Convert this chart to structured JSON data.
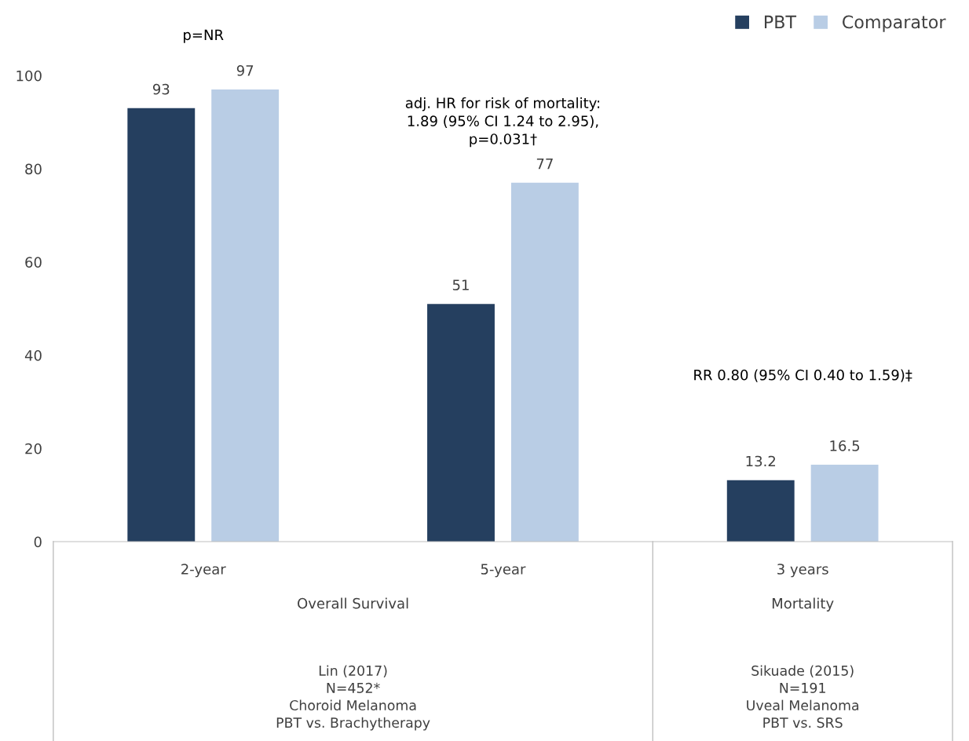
{
  "chart_data": {
    "type": "bar",
    "categories": [
      "2-year",
      "5-year",
      "3 years"
    ],
    "series": [
      {
        "name": "PBT",
        "color": "#253f5f",
        "values": [
          93,
          51,
          13.2
        ]
      },
      {
        "name": "Comparator",
        "color": "#b9cde5",
        "values": [
          97,
          77,
          16.5
        ]
      }
    ],
    "ylim": [
      0,
      100
    ],
    "yticks": [
      0,
      20,
      40,
      60,
      80,
      100
    ],
    "data_labels": true,
    "grid": false,
    "legend": "top right",
    "annotations": [
      "p=NR",
      "adj. HR for risk of mortality:\n1.89 (95% CI 1.24 to 2.95),\np=0.031†",
      "RR 0.80 (95% CI 0.40 to 1.59)‡",
      "Overall Survival",
      "Mortality",
      "Lin (2017)\nN=452*\nChoroid Melanoma\nPBT vs. Brachytherapy",
      "Sikuade (2015)\nN=191\nUveal Melanoma\nPBT vs. SRS"
    ]
  }
}
